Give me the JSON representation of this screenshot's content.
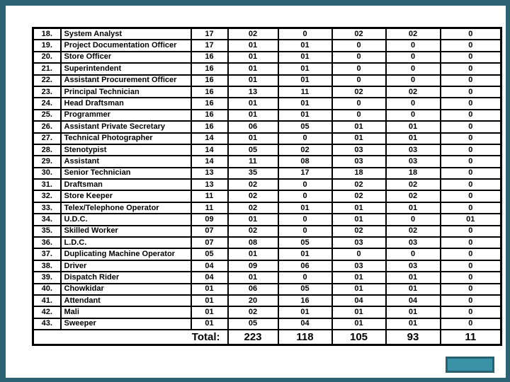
{
  "slide": {
    "background_color": "#FFFFFF",
    "frame_border_color": "#2C6272",
    "nav_button": {
      "fill_color": "#3A92A6",
      "border_color": "#2A6170"
    }
  },
  "table": {
    "rows": [
      {
        "sr": "18.",
        "designation": "System Analyst",
        "values": [
          "17",
          "02",
          "0",
          "02",
          "02",
          "0"
        ]
      },
      {
        "sr": "19.",
        "designation": "Project Documentation Officer",
        "values": [
          "17",
          "01",
          "01",
          "0",
          "0",
          "0"
        ]
      },
      {
        "sr": "20.",
        "designation": "Store Officer",
        "values": [
          "16",
          "01",
          "01",
          "0",
          "0",
          "0"
        ]
      },
      {
        "sr": "21.",
        "designation": "Superintendent",
        "values": [
          "16",
          "01",
          "01",
          "0",
          "0",
          "0"
        ]
      },
      {
        "sr": "22.",
        "designation": "Assistant Procurement Officer",
        "values": [
          "16",
          "01",
          "01",
          "0",
          "0",
          "0"
        ]
      },
      {
        "sr": "23.",
        "designation": "Principal Technician",
        "values": [
          "16",
          "13",
          "11",
          "02",
          "02",
          "0"
        ]
      },
      {
        "sr": "24.",
        "designation": "Head Draftsman",
        "values": [
          "16",
          "01",
          "01",
          "0",
          "0",
          "0"
        ]
      },
      {
        "sr": "25.",
        "designation": "Programmer",
        "values": [
          "16",
          "01",
          "01",
          "0",
          "0",
          "0"
        ]
      },
      {
        "sr": "26.",
        "designation": "Assistant Private Secretary",
        "values": [
          "16",
          "06",
          "05",
          "01",
          "01",
          "0"
        ]
      },
      {
        "sr": "27.",
        "designation": "Technical Photographer",
        "values": [
          "14",
          "01",
          "0",
          "01",
          "01",
          "0"
        ]
      },
      {
        "sr": "28.",
        "designation": "Stenotypist",
        "values": [
          "14",
          "05",
          "02",
          "03",
          "03",
          "0"
        ]
      },
      {
        "sr": "29.",
        "designation": "Assistant",
        "values": [
          "14",
          "11",
          "08",
          "03",
          "03",
          "0"
        ]
      },
      {
        "sr": "30.",
        "designation": "Senior Technician",
        "values": [
          "13",
          "35",
          "17",
          "18",
          "18",
          "0"
        ]
      },
      {
        "sr": "31.",
        "designation": "Draftsman",
        "values": [
          "13",
          "02",
          "0",
          "02",
          "02",
          "0"
        ]
      },
      {
        "sr": "32.",
        "designation": "Store Keeper",
        "values": [
          "11",
          "02",
          "0",
          "02",
          "02",
          "0"
        ]
      },
      {
        "sr": "33.",
        "designation": "Telex/Telephone Operator",
        "values": [
          "11",
          "02",
          "01",
          "01",
          "01",
          "0"
        ]
      },
      {
        "sr": "34.",
        "designation": "U.D.C.",
        "values": [
          "09",
          "01",
          "0",
          "01",
          "0",
          "01"
        ]
      },
      {
        "sr": "35.",
        "designation": "Skilled Worker",
        "values": [
          "07",
          "02",
          "0",
          "02",
          "02",
          "0"
        ]
      },
      {
        "sr": "36.",
        "designation": "L.D.C.",
        "values": [
          "07",
          "08",
          "05",
          "03",
          "03",
          "0"
        ]
      },
      {
        "sr": "37.",
        "designation": "Duplicating Machine Operator",
        "values": [
          "05",
          "01",
          "01",
          "0",
          "0",
          "0"
        ]
      },
      {
        "sr": "38.",
        "designation": "Driver",
        "values": [
          "04",
          "09",
          "06",
          "03",
          "03",
          "0"
        ]
      },
      {
        "sr": "39.",
        "designation": "Dispatch Rider",
        "values": [
          "04",
          "01",
          "0",
          "01",
          "01",
          "0"
        ]
      },
      {
        "sr": "40.",
        "designation": "Chowkidar",
        "values": [
          "01",
          "06",
          "05",
          "01",
          "01",
          "0"
        ]
      },
      {
        "sr": "41.",
        "designation": "Attendant",
        "values": [
          "01",
          "20",
          "16",
          "04",
          "04",
          "0"
        ]
      },
      {
        "sr": "42.",
        "designation": "Mali",
        "values": [
          "01",
          "02",
          "01",
          "01",
          "01",
          "0"
        ]
      },
      {
        "sr": "43.",
        "designation": "Sweeper",
        "values": [
          "01",
          "05",
          "04",
          "01",
          "01",
          "0"
        ]
      }
    ],
    "total_row": {
      "label": "Total:",
      "values": [
        "223",
        "118",
        "105",
        "93",
        "11"
      ]
    }
  }
}
